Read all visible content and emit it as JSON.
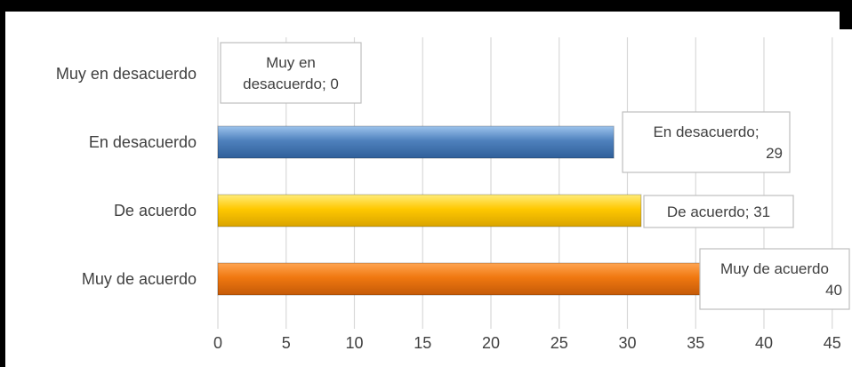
{
  "chart_data": {
    "type": "bar",
    "orientation": "horizontal",
    "categories": [
      "Muy en desacuerdo",
      "En desacuerdo",
      "De acuerdo",
      "Muy de acuerdo"
    ],
    "values": [
      0,
      29,
      31,
      40
    ],
    "data_labels": [
      [
        "Muy en",
        "desacuerdo; 0"
      ],
      [
        "En desacuerdo;",
        "29"
      ],
      [
        "De acuerdo; 31"
      ],
      [
        "Muy de acuerdo",
        "40"
      ]
    ],
    "bar_colors": [
      "#4f81bd",
      "#4f81bd",
      "#ffc000",
      "#f07810"
    ],
    "xlim": [
      0,
      45
    ],
    "xticks": [
      0,
      5,
      10,
      15,
      20,
      25,
      30,
      35,
      40,
      45
    ],
    "grid": true,
    "legend": "none",
    "title": "",
    "xlabel": "",
    "ylabel": ""
  }
}
